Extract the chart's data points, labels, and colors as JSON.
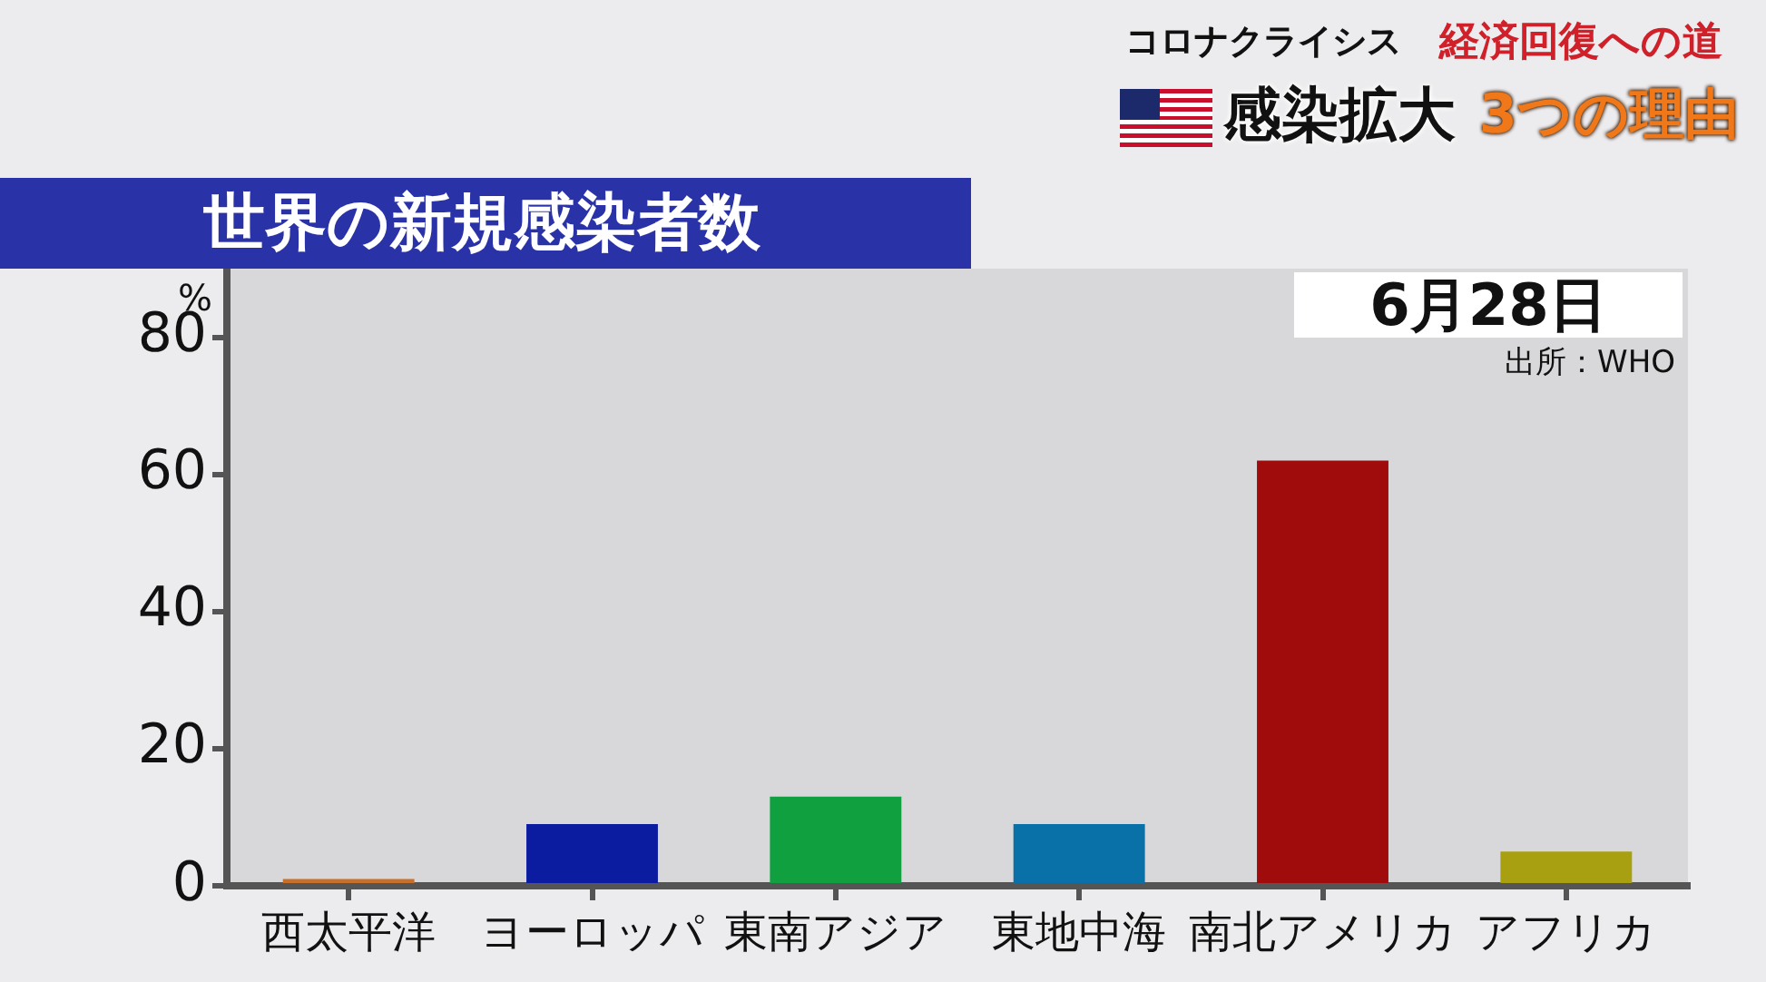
{
  "chart_data": {
    "type": "bar",
    "title": "世界の新規感染者数",
    "ylabel": "%",
    "categories": [
      "西太平洋",
      "ヨーロッパ",
      "東南アジア",
      "東地中海",
      "南北アメリカ",
      "アフリカ"
    ],
    "values": [
      1,
      9,
      13,
      9,
      62,
      5
    ],
    "colors": [
      "#c8702a",
      "#0c1ca0",
      "#10a040",
      "#0a70a8",
      "#a00c0c",
      "#a8a010"
    ],
    "ylim": [
      0,
      90
    ],
    "yticks": [
      0,
      20,
      40,
      60,
      80
    ],
    "annotations": [
      "コロナクライシス",
      "経済回復への道",
      "感染拡大",
      "3つの理由",
      "6月28日",
      "出所：WHO"
    ]
  }
}
